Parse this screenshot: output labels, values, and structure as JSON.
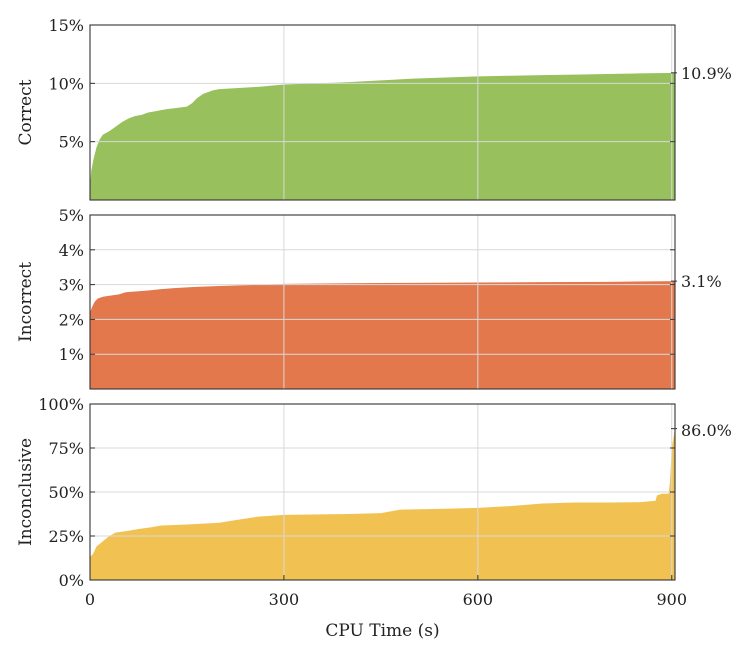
{
  "chart_data": {
    "type": "area",
    "xlabel": "CPU Time (s)",
    "x_ticks": [
      0,
      300,
      600,
      900
    ],
    "xlim": [
      0,
      905
    ],
    "panels": [
      {
        "ylabel": "Correct",
        "color": "#8fbb4f",
        "ylim": [
          0,
          15
        ],
        "y_ticks": [
          5,
          10,
          15
        ],
        "y_tick_labels": [
          "5%",
          "10%",
          "15%"
        ],
        "end_label": "10.9%",
        "points": [
          [
            0,
            1.2
          ],
          [
            2,
            2.5
          ],
          [
            5,
            3.4
          ],
          [
            10,
            4.5
          ],
          [
            15,
            5.2
          ],
          [
            20,
            5.6
          ],
          [
            30,
            5.9
          ],
          [
            40,
            6.3
          ],
          [
            50,
            6.7
          ],
          [
            60,
            7.0
          ],
          [
            70,
            7.2
          ],
          [
            80,
            7.3
          ],
          [
            90,
            7.5
          ],
          [
            100,
            7.6
          ],
          [
            110,
            7.7
          ],
          [
            120,
            7.8
          ],
          [
            135,
            7.9
          ],
          [
            150,
            8.0
          ],
          [
            158,
            8.3
          ],
          [
            165,
            8.7
          ],
          [
            175,
            9.1
          ],
          [
            190,
            9.4
          ],
          [
            200,
            9.5
          ],
          [
            230,
            9.6
          ],
          [
            260,
            9.7
          ],
          [
            300,
            9.9
          ],
          [
            350,
            10.0
          ],
          [
            400,
            10.1
          ],
          [
            450,
            10.25
          ],
          [
            500,
            10.4
          ],
          [
            550,
            10.5
          ],
          [
            600,
            10.6
          ],
          [
            650,
            10.65
          ],
          [
            700,
            10.7
          ],
          [
            750,
            10.75
          ],
          [
            800,
            10.8
          ],
          [
            850,
            10.85
          ],
          [
            905,
            10.9
          ]
        ]
      },
      {
        "ylabel": "Incorrect",
        "color": "#e06c3c",
        "ylim": [
          0,
          5
        ],
        "y_ticks": [
          1,
          2,
          3,
          4,
          5
        ],
        "y_tick_labels": [
          "1%",
          "2%",
          "3%",
          "4%",
          "5%"
        ],
        "end_label": "3.1%",
        "points": [
          [
            0,
            2.2
          ],
          [
            3,
            2.35
          ],
          [
            7,
            2.5
          ],
          [
            12,
            2.6
          ],
          [
            20,
            2.65
          ],
          [
            30,
            2.68
          ],
          [
            45,
            2.72
          ],
          [
            55,
            2.78
          ],
          [
            70,
            2.8
          ],
          [
            90,
            2.83
          ],
          [
            110,
            2.87
          ],
          [
            130,
            2.9
          ],
          [
            160,
            2.93
          ],
          [
            200,
            2.96
          ],
          [
            250,
            2.99
          ],
          [
            300,
            3.02
          ],
          [
            400,
            3.04
          ],
          [
            500,
            3.05
          ],
          [
            600,
            3.06
          ],
          [
            700,
            3.07
          ],
          [
            800,
            3.08
          ],
          [
            905,
            3.1
          ]
        ]
      },
      {
        "ylabel": "Inconclusive",
        "color": "#f0bd43",
        "ylim": [
          0,
          100
        ],
        "y_ticks": [
          0,
          25,
          50,
          75,
          100
        ],
        "y_tick_labels": [
          "0%",
          "25%",
          "50%",
          "75%",
          "100%"
        ],
        "end_label": "86.0%",
        "points": [
          [
            0,
            13
          ],
          [
            5,
            15
          ],
          [
            10,
            19
          ],
          [
            20,
            22
          ],
          [
            30,
            25
          ],
          [
            40,
            27
          ],
          [
            60,
            28
          ],
          [
            75,
            29
          ],
          [
            95,
            30
          ],
          [
            110,
            31
          ],
          [
            150,
            31.5
          ],
          [
            200,
            32.5
          ],
          [
            225,
            34
          ],
          [
            260,
            36
          ],
          [
            300,
            37
          ],
          [
            400,
            37.5
          ],
          [
            450,
            38
          ],
          [
            480,
            40
          ],
          [
            550,
            40.5
          ],
          [
            600,
            41
          ],
          [
            650,
            42
          ],
          [
            700,
            43.5
          ],
          [
            750,
            44
          ],
          [
            800,
            44
          ],
          [
            850,
            44.2
          ],
          [
            875,
            45
          ],
          [
            877,
            48
          ],
          [
            885,
            49
          ],
          [
            890,
            49
          ],
          [
            895,
            49
          ],
          [
            897,
            55
          ],
          [
            900,
            75
          ],
          [
            905,
            86
          ]
        ]
      }
    ]
  }
}
